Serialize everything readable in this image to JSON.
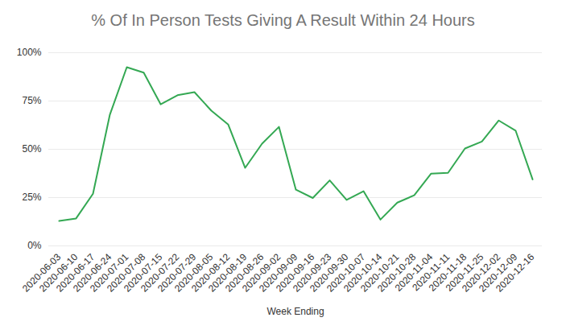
{
  "chart_data": {
    "type": "line",
    "title": "% Of In Person Tests Giving A Result Within 24 Hours",
    "x_label": "Week Ending",
    "categories": [
      "2020-06-03",
      "2020-06-10",
      "2020-06-17",
      "2020-06-24",
      "2020-07-01",
      "2020-07-08",
      "2020-07-15",
      "2020-07-22",
      "2020-07-29",
      "2020-08-05",
      "2020-08-12",
      "2020-08-19",
      "2020-08-26",
      "2020-09-02",
      "2020-09-09",
      "2020-09-16",
      "2020-09-23",
      "2020-09-30",
      "2020-10-07",
      "2020-10-14",
      "2020-10-21",
      "2020-10-28",
      "2020-11-04",
      "2020-11-11",
      "2020-11-18",
      "2020-11-25",
      "2020-12-02",
      "2020-12-09",
      "2020-12-16"
    ],
    "values": [
      12.9,
      14.2,
      27,
      68,
      92.5,
      89.7,
      73.3,
      78,
      79.6,
      70,
      62.8,
      40.4,
      52.9,
      61.6,
      29.1,
      24.8,
      33.9,
      23.8,
      28.3,
      13.6,
      22.4,
      26.2,
      37.4,
      37.8,
      50.4,
      54,
      64.9,
      59.6,
      34.4
    ],
    "color": "#34a853",
    "ylim": [
      0,
      100
    ],
    "yticks": [
      {
        "value": 0,
        "label": "0%"
      },
      {
        "value": 25,
        "label": "25%"
      },
      {
        "value": 50,
        "label": "50%"
      },
      {
        "value": 75,
        "label": "75%"
      },
      {
        "value": 100,
        "label": "100%"
      }
    ],
    "grid": true
  }
}
